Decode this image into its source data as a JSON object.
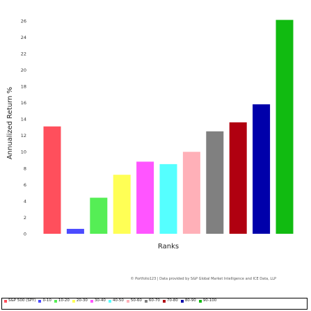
{
  "chart_data": {
    "type": "bar",
    "categories": [
      "S&P 500 (SPY)",
      "0-10",
      "10-20",
      "20-30",
      "30-40",
      "40-50",
      "50-60",
      "60-70",
      "70-80",
      "80-90",
      "90-100"
    ],
    "values": [
      13.1,
      0.6,
      4.4,
      7.2,
      8.8,
      8.5,
      10.0,
      12.5,
      13.6,
      15.8,
      26.1
    ],
    "colors": [
      "#ff4f5c",
      "#4b4bff",
      "#55ee55",
      "#ffff55",
      "#ff55ff",
      "#55ffff",
      "#ffb0b8",
      "#808080",
      "#b00010",
      "#0000aa",
      "#11bb11"
    ],
    "xlabel": "Ranks",
    "ylabel": "Annualized Return %",
    "ylim": [
      0,
      27
    ],
    "yticks": [
      0,
      2,
      4,
      6,
      8,
      10,
      12,
      14,
      16,
      18,
      20,
      22,
      24,
      26
    ],
    "grid": false,
    "legend_position": "bottom",
    "credit": "© Portfolio123 | Data provided by S&P Global Market Intelligence and ICE Data, LLP"
  }
}
